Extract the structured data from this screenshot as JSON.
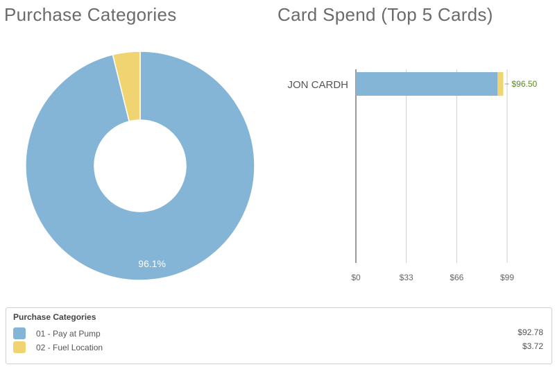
{
  "titles": {
    "donut": "Purchase Categories",
    "bar": "Card Spend (Top 5 Cards)"
  },
  "colors": {
    "blue": "#84b4d6",
    "yellow": "#f0d472",
    "value_label": "#5a8a1f"
  },
  "legend": {
    "title": "Purchase Categories",
    "items": [
      {
        "label": "01 - Pay at Pump",
        "value": "$92.78",
        "color": "#84b4d6"
      },
      {
        "label": "02 - Fuel Location",
        "value": "$3.72",
        "color": "#f0d472"
      }
    ]
  },
  "chart_data": [
    {
      "type": "pie",
      "title": "Purchase Categories",
      "donut": true,
      "slices": [
        {
          "label": "01 - Pay at Pump",
          "value": 92.78,
          "percent_label": "96.1%"
        },
        {
          "label": "02 - Fuel Location",
          "value": 3.72,
          "percent_label": ""
        }
      ]
    },
    {
      "type": "bar",
      "orientation": "horizontal",
      "stacked": true,
      "title": "Card Spend (Top 5 Cards)",
      "categories": [
        "JON CARDH"
      ],
      "series": [
        {
          "name": "01 - Pay at Pump",
          "values": [
            92.78
          ]
        },
        {
          "name": "02 - Fuel Location",
          "values": [
            3.72
          ]
        }
      ],
      "total_labels": [
        "$96.50"
      ],
      "xlim": [
        0,
        99
      ],
      "xticks": [
        "$0",
        "$33",
        "$66",
        "$99"
      ],
      "xtick_values": [
        0,
        33,
        66,
        99
      ],
      "grid": true
    }
  ]
}
